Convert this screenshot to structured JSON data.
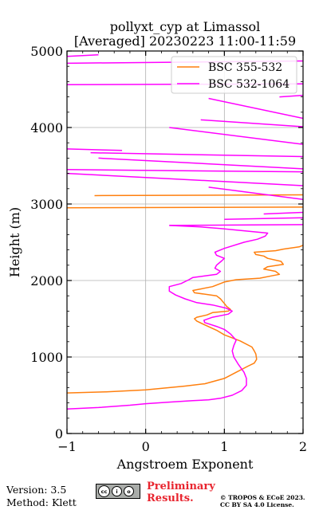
{
  "chart_data": {
    "type": "line",
    "title": "pollyxt_cyp at Limassol",
    "subtitle": "[Averaged] 20230223 11:00-11:59",
    "xlabel": "Angstroem Exponent",
    "ylabel": "Height (m)",
    "xlim": [
      -1,
      2
    ],
    "ylim": [
      0,
      5000
    ],
    "x_ticks": [
      "−1",
      "0",
      "1",
      "2"
    ],
    "y_ticks": [
      "0",
      "1000",
      "2000",
      "3000",
      "4000",
      "5000"
    ],
    "grid": true,
    "legend_position": "top-right",
    "series": [
      {
        "name": "BSC 355-532",
        "color": "#ff7f0e",
        "points": [
          [
            -1.0,
            530
          ],
          [
            -0.5,
            545
          ],
          [
            0.0,
            570
          ],
          [
            0.5,
            620
          ],
          [
            0.75,
            650
          ],
          [
            1.0,
            720
          ],
          [
            1.15,
            800
          ],
          [
            1.3,
            880
          ],
          [
            1.38,
            920
          ],
          [
            1.41,
            970
          ],
          [
            1.4,
            1040
          ],
          [
            1.38,
            1080
          ],
          [
            1.35,
            1130
          ],
          [
            1.2,
            1210
          ],
          [
            1.0,
            1290
          ],
          [
            0.9,
            1350
          ],
          [
            0.75,
            1420
          ],
          [
            0.65,
            1470
          ],
          [
            0.62,
            1500
          ],
          [
            0.65,
            1520
          ],
          [
            0.78,
            1550
          ],
          [
            0.85,
            1580
          ],
          [
            1.05,
            1600
          ],
          [
            1.08,
            1620
          ],
          [
            1.03,
            1660
          ],
          [
            1.0,
            1700
          ],
          [
            0.95,
            1760
          ],
          [
            0.9,
            1800
          ],
          [
            0.62,
            1840
          ],
          [
            0.6,
            1870
          ],
          [
            0.7,
            1890
          ],
          [
            0.85,
            1920
          ],
          [
            1.0,
            1980
          ],
          [
            1.15,
            2010
          ],
          [
            1.45,
            2030
          ],
          [
            1.6,
            2060
          ],
          [
            1.7,
            2080
          ],
          [
            1.65,
            2120
          ],
          [
            1.5,
            2150
          ],
          [
            1.55,
            2180
          ],
          [
            1.75,
            2210
          ],
          [
            1.72,
            2250
          ],
          [
            1.55,
            2290
          ],
          [
            1.5,
            2320
          ],
          [
            1.4,
            2340
          ],
          [
            1.38,
            2370
          ],
          [
            1.65,
            2390
          ],
          [
            1.75,
            2410
          ],
          [
            1.95,
            2440
          ],
          [
            2.0,
            2460
          ]
        ],
        "spikes": [
          [
            2.0,
            2730
          ],
          [
            2.0,
            2740
          ],
          [
            -1.0,
            2950
          ],
          [
            2.0,
            2960
          ],
          [
            -0.65,
            3110
          ],
          [
            2.0,
            3120
          ]
        ]
      },
      {
        "name": "BSC 532-1064",
        "color": "#ff00ff",
        "points": [
          [
            -1.0,
            320
          ],
          [
            -0.6,
            340
          ],
          [
            -0.2,
            370
          ],
          [
            0.0,
            390
          ],
          [
            0.3,
            410
          ],
          [
            0.6,
            430
          ],
          [
            0.8,
            440
          ],
          [
            0.95,
            460
          ],
          [
            1.1,
            500
          ],
          [
            1.22,
            560
          ],
          [
            1.28,
            630
          ],
          [
            1.28,
            720
          ],
          [
            1.25,
            800
          ],
          [
            1.18,
            900
          ],
          [
            1.12,
            1000
          ],
          [
            1.1,
            1080
          ],
          [
            1.12,
            1150
          ],
          [
            1.15,
            1220
          ],
          [
            1.08,
            1300
          ],
          [
            1.0,
            1360
          ],
          [
            0.9,
            1400
          ],
          [
            0.75,
            1450
          ],
          [
            0.74,
            1480
          ],
          [
            0.85,
            1520
          ],
          [
            1.05,
            1560
          ],
          [
            1.1,
            1600
          ],
          [
            1.02,
            1640
          ],
          [
            0.85,
            1680
          ],
          [
            0.65,
            1710
          ],
          [
            0.5,
            1760
          ],
          [
            0.38,
            1810
          ],
          [
            0.3,
            1860
          ],
          [
            0.3,
            1920
          ],
          [
            0.45,
            1960
          ],
          [
            0.55,
            2010
          ],
          [
            0.6,
            2040
          ],
          [
            0.9,
            2080
          ],
          [
            0.95,
            2120
          ],
          [
            0.88,
            2160
          ],
          [
            0.9,
            2200
          ],
          [
            0.97,
            2260
          ],
          [
            1.0,
            2290
          ],
          [
            0.9,
            2330
          ],
          [
            0.88,
            2370
          ],
          [
            1.0,
            2420
          ],
          [
            1.25,
            2500
          ],
          [
            1.42,
            2540
          ],
          [
            1.52,
            2580
          ],
          [
            1.55,
            2620
          ],
          [
            0.95,
            2680
          ],
          [
            0.7,
            2700
          ],
          [
            0.3,
            2720
          ]
        ],
        "spikes": [
          [
            0.3,
            2720
          ],
          [
            2.0,
            2730
          ],
          [
            1.0,
            2800
          ],
          [
            2.0,
            2820
          ],
          [
            1.5,
            2870
          ],
          [
            2.0,
            2890
          ],
          [
            2.0,
            3060
          ],
          [
            0.8,
            3220
          ],
          [
            2.0,
            3240
          ],
          [
            -1.0,
            3400
          ],
          [
            2.0,
            3420
          ],
          [
            -1.0,
            3450
          ],
          [
            2.0,
            3460
          ],
          [
            -0.6,
            3600
          ],
          [
            2.0,
            3620
          ],
          [
            -0.7,
            3670
          ],
          [
            -0.3,
            3700
          ],
          [
            -1.0,
            3720
          ],
          [
            2.0,
            3780
          ],
          [
            0.3,
            4000
          ],
          [
            2.0,
            4010
          ],
          [
            0.7,
            4100
          ],
          [
            2.0,
            4120
          ],
          [
            0.8,
            4380
          ],
          [
            1.7,
            4400
          ],
          [
            2.0,
            4420
          ],
          [
            -1.0,
            4560
          ],
          [
            2.0,
            4570
          ],
          [
            -1.0,
            4840
          ],
          [
            2.0,
            4870
          ],
          [
            -1.0,
            4930
          ],
          [
            -0.6,
            4950
          ],
          [
            2.0,
            4960
          ]
        ]
      }
    ]
  },
  "footer": {
    "version": "Version: 3.5",
    "method": "Method: Klett",
    "preliminary_line1": "Preliminary",
    "preliminary_line2": "Results.",
    "license_line1": "© TROPOS & ECoE 2023.",
    "license_line2": "CC BY SA 4.0 License.",
    "cc_badge": [
      "cc",
      "i",
      "o"
    ],
    "cc_badge_caption": "BY SA"
  }
}
